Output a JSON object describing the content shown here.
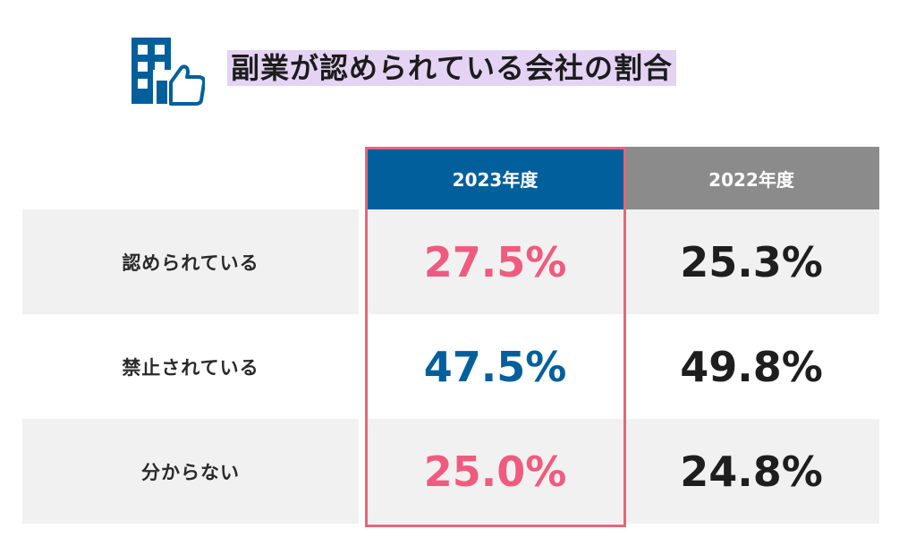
{
  "title": "副業が認められている会社の割合",
  "icon": "building-thumbs-up-icon",
  "colors": {
    "accent_blue": "#015f9c",
    "accent_pink": "#ef5b7f",
    "header_gray": "#8b8b8b",
    "title_highlight": "#e4d3f5",
    "frame": "#e8647a"
  },
  "chart_data": {
    "type": "table",
    "columns": [
      "2023年度",
      "2022年度"
    ],
    "rows": [
      {
        "label": "認められている",
        "values": [
          "27.5%",
          "25.3%"
        ],
        "highlight_color": "#ef5b7f"
      },
      {
        "label": "禁止されている",
        "values": [
          "47.5%",
          "49.8%"
        ],
        "highlight_color": "#015f9c"
      },
      {
        "label": "分からない",
        "values": [
          "25.0%",
          "24.8%"
        ],
        "highlight_color": "#ef5b7f"
      }
    ],
    "highlighted_column": "2023年度"
  }
}
